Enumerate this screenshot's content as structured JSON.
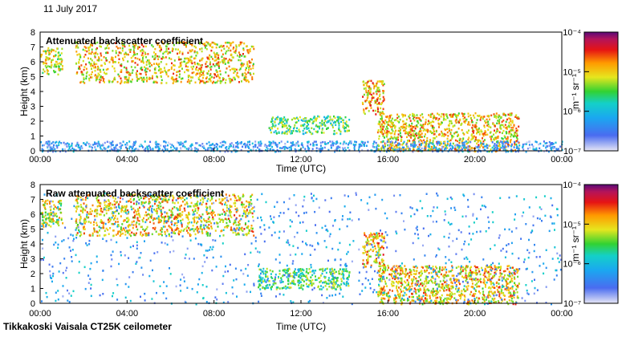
{
  "date_label": "11 July 2017",
  "footer_label": "Tikkakoski Vaisala CT25K ceilometer",
  "chart_data": [
    {
      "type": "heatmap",
      "title": "Attenuated backscatter coefficient",
      "xlabel": "Time (UTC)",
      "ylabel": "Height (km)",
      "xlim": [
        0,
        24
      ],
      "ylim": [
        0,
        8
      ],
      "x_ticks": [
        "00:00",
        "04:00",
        "08:00",
        "12:00",
        "16:00",
        "20:00",
        "00:00"
      ],
      "y_ticks": [
        "0",
        "1",
        "2",
        "3",
        "4",
        "5",
        "6",
        "7",
        "8"
      ],
      "colorbar": {
        "label": "m⁻¹ sr⁻¹",
        "ticks": [
          "10⁻⁷",
          "10⁻⁶",
          "10⁻⁵",
          "10⁻⁴"
        ],
        "range_log10": [
          -7,
          -4
        ]
      },
      "features": [
        {
          "t0": 0.0,
          "t1": 1.0,
          "h0": 5.2,
          "h1": 7.0,
          "log_level": -5.2
        },
        {
          "t0": 1.6,
          "t1": 9.8,
          "h0": 4.6,
          "h1": 7.4,
          "log_level": -5.0
        },
        {
          "t0": 10.5,
          "t1": 14.2,
          "h0": 1.2,
          "h1": 2.4,
          "log_level": -5.6
        },
        {
          "t0": 14.8,
          "t1": 15.8,
          "h0": 2.5,
          "h1": 4.8,
          "log_level": -4.9
        },
        {
          "t0": 15.5,
          "t1": 22.0,
          "h0": 0.0,
          "h1": 2.6,
          "log_level": -5.0
        },
        {
          "t0": 0.0,
          "t1": 24.0,
          "h0": 0.0,
          "h1": 0.7,
          "log_level": -6.4
        }
      ]
    },
    {
      "type": "heatmap",
      "title": "Raw attenuated backscatter coefficient",
      "xlabel": "Time (UTC)",
      "ylabel": "Height (km)",
      "xlim": [
        0,
        24
      ],
      "ylim": [
        0,
        8
      ],
      "x_ticks": [
        "00:00",
        "04:00",
        "08:00",
        "12:00",
        "16:00",
        "20:00",
        "00:00"
      ],
      "y_ticks": [
        "0",
        "1",
        "2",
        "3",
        "4",
        "5",
        "6",
        "7",
        "8"
      ],
      "colorbar": {
        "label": "m⁻¹ sr⁻¹",
        "ticks": [
          "10⁻⁷",
          "10⁻⁶",
          "10⁻⁵",
          "10⁻⁴"
        ],
        "range_log10": [
          -7,
          -4
        ]
      },
      "features": [
        {
          "t0": 0.0,
          "t1": 1.0,
          "h0": 5.2,
          "h1": 7.0,
          "log_level": -5.2
        },
        {
          "t0": 1.6,
          "t1": 9.8,
          "h0": 4.6,
          "h1": 7.4,
          "log_level": -5.0
        },
        {
          "t0": 10.0,
          "t1": 14.2,
          "h0": 1.0,
          "h1": 2.4,
          "log_level": -5.6
        },
        {
          "t0": 14.8,
          "t1": 15.8,
          "h0": 2.5,
          "h1": 4.8,
          "log_level": -4.9
        },
        {
          "t0": 15.5,
          "t1": 22.0,
          "h0": 0.0,
          "h1": 2.6,
          "log_level": -5.0
        },
        {
          "t0": 0.0,
          "t1": 24.0,
          "h0": 0.0,
          "h1": 7.5,
          "log_level": -6.3
        }
      ]
    }
  ]
}
